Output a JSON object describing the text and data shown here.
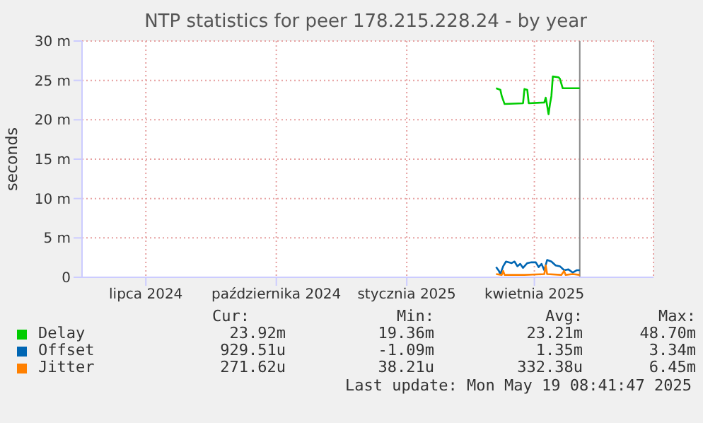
{
  "chart_data": {
    "type": "line",
    "title": "NTP statistics for peer 178.215.228.24 - by year",
    "ylabel": "seconds",
    "xlim": [
      "2024-05-17",
      "2025-06-24"
    ],
    "xticks": [
      {
        "value": "2024-07-01",
        "label": "lipca 2024"
      },
      {
        "value": "2024-10-01",
        "label": "października 2024"
      },
      {
        "value": "2025-01-01",
        "label": "stycznia 2025"
      },
      {
        "value": "2025-04-01",
        "label": "kwietnia 2025"
      }
    ],
    "ylim": [
      0,
      30
    ],
    "yticks": [
      0,
      {
        "value": 5,
        "label": "5 m"
      },
      {
        "value": 10,
        "label": "10 m"
      },
      {
        "value": 15,
        "label": "15 m"
      },
      {
        "value": 20,
        "label": "20 m"
      },
      {
        "value": 25,
        "label": "25 m"
      },
      {
        "value": 30,
        "label": "30 m"
      }
    ],
    "grid": true,
    "legend": "bottom",
    "ref_lines": [
      {
        "axis": "x",
        "value": "2025-05-03",
        "color": "#888888"
      }
    ],
    "series": [
      {
        "name": "Delay",
        "color": "#00cc00",
        "x": [
          "2025-03-05",
          "2025-03-08",
          "2025-03-09",
          "2025-03-11",
          "2025-03-24",
          "2025-03-25",
          "2025-03-27",
          "2025-03-28",
          "2025-04-08",
          "2025-04-09",
          "2025-04-10",
          "2025-04-11",
          "2025-04-12",
          "2025-04-13",
          "2025-04-14",
          "2025-04-18",
          "2025-04-19",
          "2025-04-21",
          "2025-05-03"
        ],
        "values": [
          24.0,
          23.8,
          23.0,
          22.0,
          22.1,
          23.9,
          23.8,
          22.1,
          22.2,
          22.8,
          21.8,
          20.7,
          22.0,
          23.0,
          25.5,
          25.4,
          25.2,
          24.0,
          24.0
        ]
      },
      {
        "name": "Offset",
        "color": "#0066b3",
        "x": [
          "2025-03-05",
          "2025-03-07",
          "2025-03-08",
          "2025-03-10",
          "2025-03-12",
          "2025-03-16",
          "2025-03-18",
          "2025-03-20",
          "2025-03-22",
          "2025-03-24",
          "2025-03-27",
          "2025-03-30",
          "2025-04-02",
          "2025-04-04",
          "2025-04-06",
          "2025-04-08",
          "2025-04-10",
          "2025-04-13",
          "2025-04-16",
          "2025-04-19",
          "2025-04-22",
          "2025-04-25",
          "2025-04-28",
          "2025-05-01",
          "2025-05-03"
        ],
        "values": [
          1.3,
          0.8,
          0.4,
          1.4,
          2.0,
          1.8,
          2.0,
          1.4,
          1.7,
          1.2,
          1.8,
          1.9,
          1.9,
          1.3,
          1.7,
          0.9,
          2.2,
          2.0,
          1.5,
          1.4,
          0.9,
          1.0,
          0.6,
          0.9,
          0.9
        ]
      },
      {
        "name": "Jitter",
        "color": "#ff8000",
        "x": [
          "2025-03-05",
          "2025-03-09",
          "2025-03-10",
          "2025-03-11",
          "2025-03-25",
          "2025-04-08",
          "2025-04-09",
          "2025-04-10",
          "2025-04-20",
          "2025-04-22",
          "2025-04-23",
          "2025-04-28",
          "2025-05-03"
        ],
        "values": [
          0.4,
          0.3,
          0.8,
          0.3,
          0.3,
          0.4,
          1.5,
          0.4,
          0.3,
          0.8,
          0.3,
          0.4,
          0.3
        ]
      }
    ],
    "annotations": [
      "Cur:",
      "Min:",
      "Avg:",
      "Max:",
      "23.92m",
      "19.36m",
      "23.21m",
      "48.70m",
      "929.51u",
      "-1.09m",
      "1.35m",
      "3.34m",
      "271.62u",
      "38.21u",
      "332.38u",
      "6.45m",
      "Last update: Mon May 19 08:41:47 2025"
    ]
  }
}
